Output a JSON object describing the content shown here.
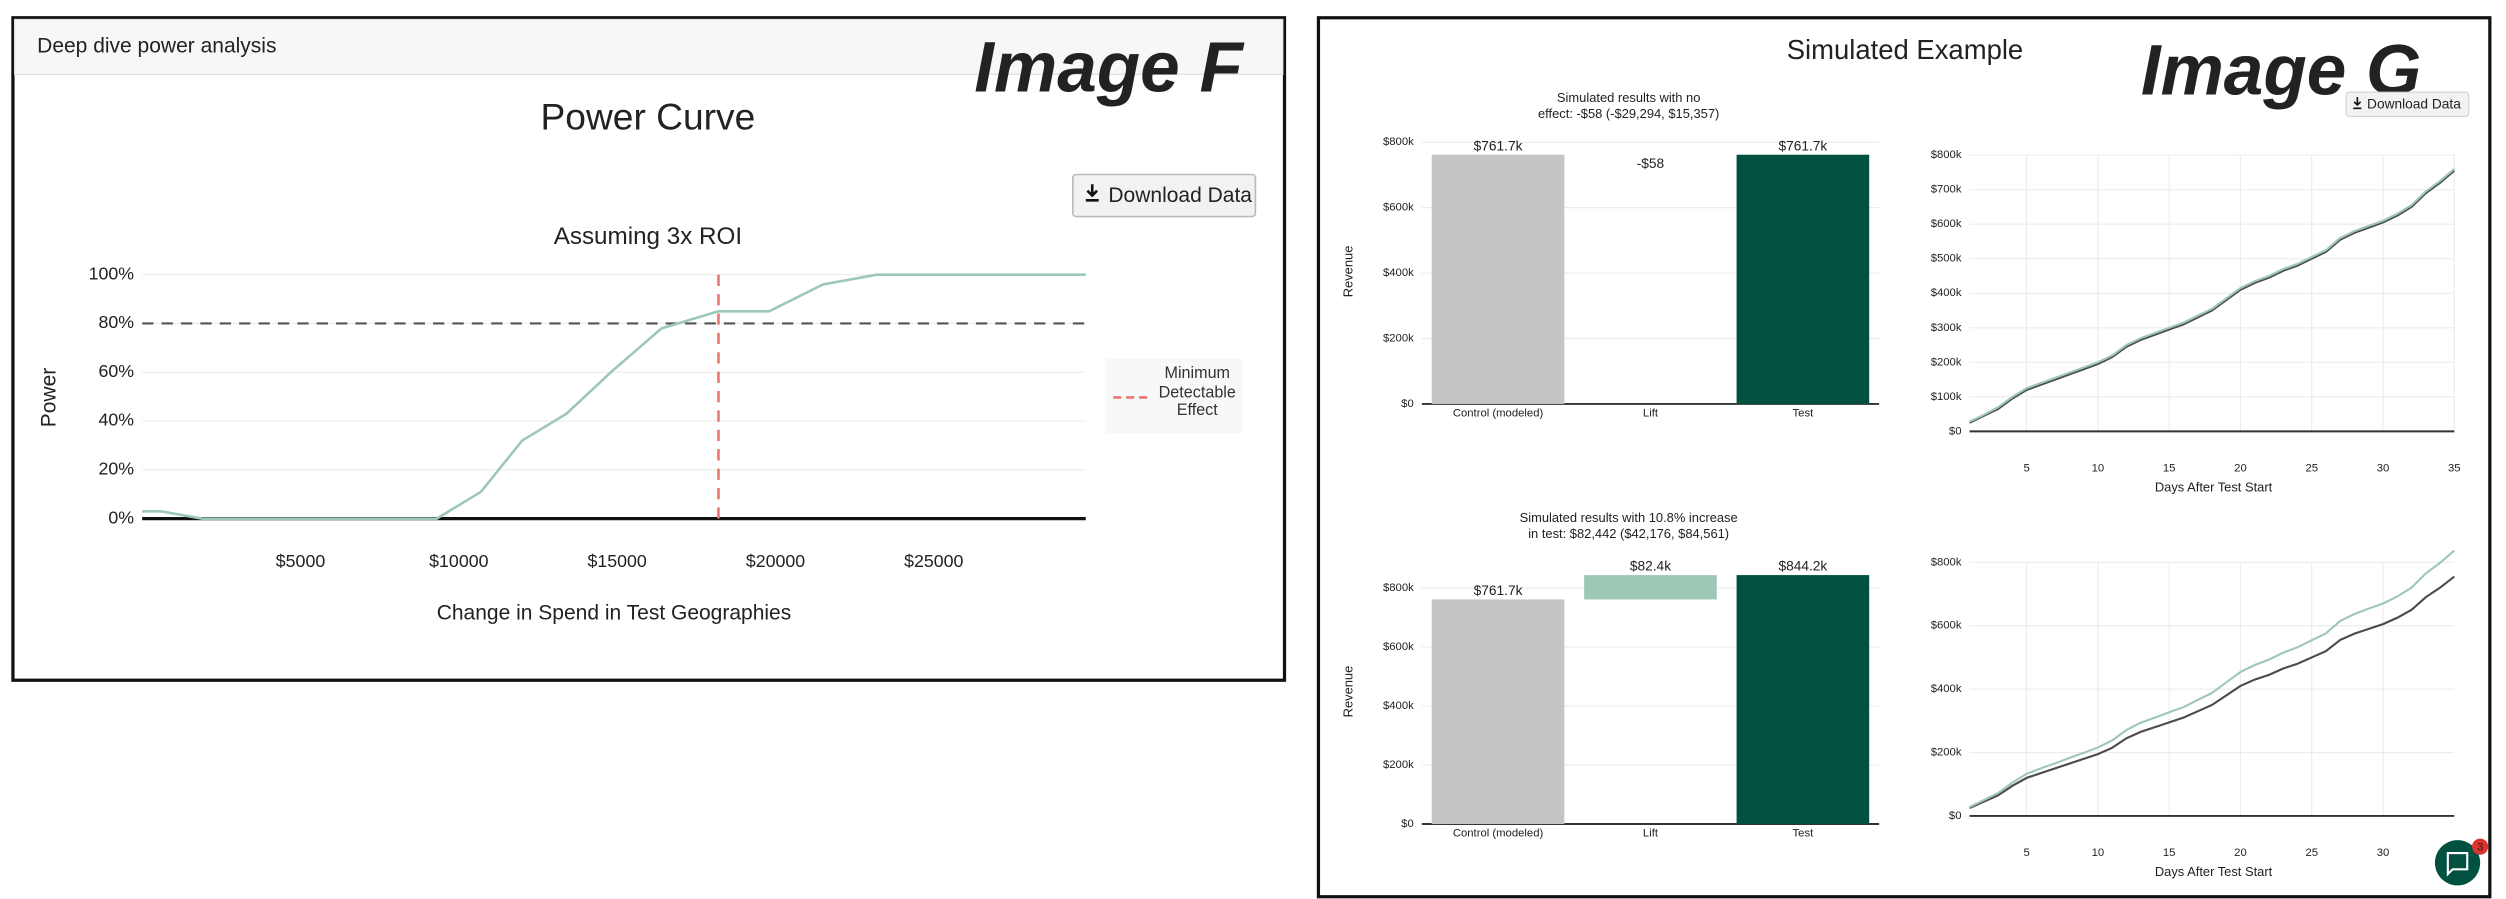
{
  "panel_f": {
    "header": "Deep dive power analysis",
    "tag": "Image F",
    "button": "Download Data"
  },
  "panel_g": {
    "title": "Simulated Example",
    "tag": "Image G",
    "button": "Download Data",
    "chat_badge": 3
  },
  "chart_data": [
    {
      "type": "line",
      "title": "Power Curve",
      "subtitle": "Assuming 3x ROI",
      "x_label": "Change in Spend in Test Geographies",
      "y_label": "Power",
      "x": [
        0,
        600,
        1900,
        9300,
        10700,
        12000,
        13400,
        14800,
        16400,
        18200,
        19800,
        21500,
        23200,
        29800
      ],
      "series": [
        {
          "color": "#9dc8b3",
          "values": [
            3,
            3,
            0,
            0,
            11,
            32,
            43,
            60,
            78,
            85,
            85,
            96,
            100,
            100
          ]
        }
      ],
      "xlim": [
        0,
        29800
      ],
      "xticks": [
        {
          "value": 5000,
          "label": "$5000"
        },
        {
          "value": 10000,
          "label": "$10000"
        },
        {
          "value": 15000,
          "label": "$15000"
        },
        {
          "value": 20000,
          "label": "$20000"
        },
        {
          "value": 25000,
          "label": "$25000"
        }
      ],
      "ylim": [
        0,
        100
      ],
      "yticks": [
        {
          "value": 0,
          "label": "0%"
        },
        {
          "value": 20,
          "label": "20%"
        },
        {
          "value": 40,
          "label": "40%"
        },
        {
          "value": 60,
          "label": "60%"
        },
        {
          "value": 80,
          "label": "80%"
        },
        {
          "value": 100,
          "label": "100%"
        }
      ],
      "threshold": 80,
      "mde": {
        "name": "Minimum Detectable Effect",
        "value": 18200,
        "color": "#f0756e"
      },
      "legend": "right",
      "grid": true
    },
    {
      "type": "waterfall",
      "title": [
        "Simulated results with no",
        "effect: -$58 (-$29,294, $15,357)"
      ],
      "y_label": "Revenue",
      "categories": [
        "Control (modeled)",
        "Lift",
        "Test"
      ],
      "values": [
        761700,
        -58,
        761700
      ],
      "value_labels": [
        "$761.7k",
        "-$58",
        "$761.7k"
      ],
      "colors": [
        "#c6c5c3",
        "#9dc8b3",
        "#00513f"
      ],
      "ylim": [
        0,
        800000
      ],
      "yticks": [
        {
          "value": 0,
          "label": "$0"
        },
        {
          "value": 200000,
          "label": "$200k"
        },
        {
          "value": 400000,
          "label": "$400k"
        },
        {
          "value": 600000,
          "label": "$600k"
        },
        {
          "value": 800000,
          "label": "$800k"
        }
      ],
      "grid": true
    },
    {
      "type": "line",
      "x_label": "Days After Test Start",
      "x": [
        1,
        2,
        3,
        4,
        5,
        6,
        7,
        8,
        9,
        10,
        11,
        12,
        13,
        14,
        15,
        16,
        17,
        18,
        19,
        20,
        21,
        22,
        23,
        24,
        25,
        26,
        27,
        28,
        29,
        30,
        31,
        32,
        33,
        34,
        35
      ],
      "series": [
        {
          "color": "#4a4a50",
          "values": [
            25000,
            45000,
            65000,
            95000,
            120000,
            135000,
            150000,
            165000,
            180000,
            195000,
            215000,
            245000,
            265000,
            280000,
            295000,
            310000,
            330000,
            350000,
            380000,
            410000,
            430000,
            445000,
            465000,
            480000,
            500000,
            520000,
            555000,
            575000,
            590000,
            605000,
            625000,
            650000,
            690000,
            720000,
            755000
          ]
        },
        {
          "color": "#9dc8b3",
          "values": [
            28000,
            48000,
            70000,
            100000,
            125000,
            140000,
            155000,
            170000,
            185000,
            200000,
            220000,
            250000,
            270000,
            285000,
            300000,
            315000,
            335000,
            355000,
            385000,
            415000,
            435000,
            450000,
            470000,
            485000,
            505000,
            525000,
            560000,
            580000,
            595000,
            610000,
            630000,
            655000,
            695000,
            725000,
            760000
          ]
        }
      ],
      "xlim": [
        1,
        35
      ],
      "xticks": [
        5,
        10,
        15,
        20,
        25,
        30,
        35
      ],
      "ylim": [
        0,
        800000
      ],
      "yticks": [
        {
          "value": 0,
          "label": "$0"
        },
        {
          "value": 100000,
          "label": "$100k"
        },
        {
          "value": 200000,
          "label": "$200k"
        },
        {
          "value": 300000,
          "label": "$300k"
        },
        {
          "value": 400000,
          "label": "$400k"
        },
        {
          "value": 500000,
          "label": "$500k"
        },
        {
          "value": 600000,
          "label": "$600k"
        },
        {
          "value": 700000,
          "label": "$700k"
        },
        {
          "value": 800000,
          "label": "$800k"
        }
      ],
      "grid": true
    },
    {
      "type": "waterfall",
      "title": [
        "Simulated results with 10.8% increase",
        "in test: $82,442 ($42,176, $84,561)"
      ],
      "y_label": "Revenue",
      "categories": [
        "Control (modeled)",
        "Lift",
        "Test"
      ],
      "values": [
        761700,
        82442,
        844200
      ],
      "value_labels": [
        "$761.7k",
        "$82.4k",
        "$844.2k"
      ],
      "colors": [
        "#c6c5c3",
        "#9dc8b3",
        "#00513f"
      ],
      "ylim": [
        0,
        800000
      ],
      "yticks": [
        {
          "value": 0,
          "label": "$0"
        },
        {
          "value": 200000,
          "label": "$200k"
        },
        {
          "value": 400000,
          "label": "$400k"
        },
        {
          "value": 600000,
          "label": "$600k"
        },
        {
          "value": 800000,
          "label": "$800k"
        }
      ],
      "grid": true
    },
    {
      "type": "line",
      "x_label": "Days After Test Start",
      "x": [
        1,
        2,
        3,
        4,
        5,
        6,
        7,
        8,
        9,
        10,
        11,
        12,
        13,
        14,
        15,
        16,
        17,
        18,
        19,
        20,
        21,
        22,
        23,
        24,
        25,
        26,
        27,
        28,
        29,
        30,
        31,
        32,
        33,
        34,
        35
      ],
      "series": [
        {
          "color": "#4a4a50",
          "values": [
            25000,
            45000,
            65000,
            95000,
            120000,
            135000,
            150000,
            165000,
            180000,
            195000,
            215000,
            245000,
            265000,
            280000,
            295000,
            310000,
            330000,
            350000,
            380000,
            410000,
            430000,
            445000,
            465000,
            480000,
            500000,
            520000,
            555000,
            575000,
            590000,
            605000,
            625000,
            650000,
            690000,
            720000,
            755000
          ]
        },
        {
          "color": "#9dc8b3",
          "values": [
            28000,
            50000,
            72000,
            105000,
            133000,
            150000,
            166000,
            183000,
            199000,
            216000,
            238000,
            271000,
            294000,
            310000,
            327000,
            343000,
            366000,
            388000,
            421000,
            454000,
            476000,
            493000,
            515000,
            532000,
            554000,
            576000,
            615000,
            637000,
            654000,
            670000,
            692000,
            720000,
            765000,
            798000,
            837000
          ]
        }
      ],
      "xlim": [
        1,
        35
      ],
      "xticks": [
        5,
        10,
        15,
        20,
        25,
        30
      ],
      "ylim": [
        0,
        800000
      ],
      "yticks": [
        {
          "value": 0,
          "label": "$0"
        },
        {
          "value": 200000,
          "label": "$200k"
        },
        {
          "value": 400000,
          "label": "$400k"
        },
        {
          "value": 600000,
          "label": "$600k"
        },
        {
          "value": 800000,
          "label": "$800k"
        }
      ],
      "grid": true
    }
  ]
}
